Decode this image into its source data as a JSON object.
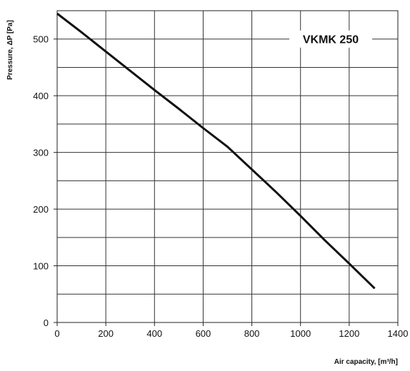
{
  "chart_data": {
    "type": "line",
    "xlabel": "Air capacity, [m³/h]",
    "ylabel": "Pressure, ΔP [Pa]",
    "xlim": [
      0,
      1400
    ],
    "ylim": [
      0,
      550
    ],
    "x_ticks": [
      0,
      200,
      400,
      600,
      800,
      1000,
      1200,
      1400
    ],
    "y_ticks": [
      0,
      100,
      200,
      300,
      400,
      500
    ],
    "x_grid": [
      0,
      200,
      400,
      600,
      800,
      1000,
      1200,
      1400
    ],
    "y_grid": [
      0,
      50,
      100,
      150,
      200,
      250,
      300,
      350,
      400,
      450,
      500,
      550
    ],
    "grid": true,
    "series": [
      {
        "name": "VKMK 250",
        "color": "#111111",
        "x": [
          0,
          100,
          200,
          300,
          400,
          500,
          600,
          700,
          800,
          900,
          1000,
          1100,
          1200,
          1305
        ],
        "y": [
          545,
          512,
          478,
          444,
          410,
          377,
          343,
          310,
          270,
          230,
          188,
          145,
          104,
          60
        ]
      }
    ]
  }
}
